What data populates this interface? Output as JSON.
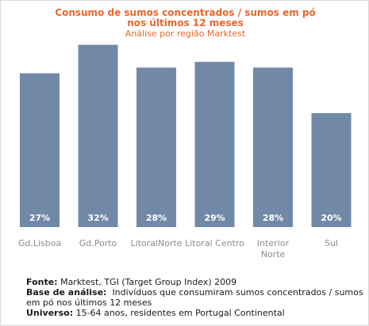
{
  "title_line1": "Consumo de sumos concentrados / sumos em pó",
  "title_line2": "nos últimos 12 meses",
  "subtitle": "Análise por região Marktest",
  "chart_data": {
    "type": "bar",
    "title": "Consumo de sumos concentrados / sumos em pó nos últimos 12 meses",
    "subtitle": "Análise por região Marktest",
    "categories": [
      "Gd.Lisboa",
      "Gd.Porto",
      "LitoralNorte",
      "Litoral Centro",
      "Interior Norte",
      "Sul"
    ],
    "category_lines": [
      [
        "Gd.Lisboa"
      ],
      [
        "Gd.Porto"
      ],
      [
        "LitoralNorte"
      ],
      [
        "Litoral Centro"
      ],
      [
        "Interior",
        "Norte"
      ],
      [
        "Sul"
      ]
    ],
    "values": [
      27,
      32,
      28,
      29,
      28,
      20
    ],
    "data_labels": [
      "27%",
      "32%",
      "28%",
      "29%",
      "28%",
      "20%"
    ],
    "unit": "%",
    "ylim": [
      0,
      37.5
    ],
    "grid": false,
    "legend": "none",
    "bar_color": "#7189a6"
  },
  "footer": {
    "fonte_label": "Fonte:",
    "fonte_text": "Marktest, TGI (Target Group Index) 2009",
    "base_label": "Base de análise:",
    "base_text": "Indivíduos que consumiram sumos concentrados / sumos em pó nos últimos 12 meses",
    "universo_label": "Universo:",
    "universo_text": "15-64 anos, residentes em Portugal Continental"
  }
}
